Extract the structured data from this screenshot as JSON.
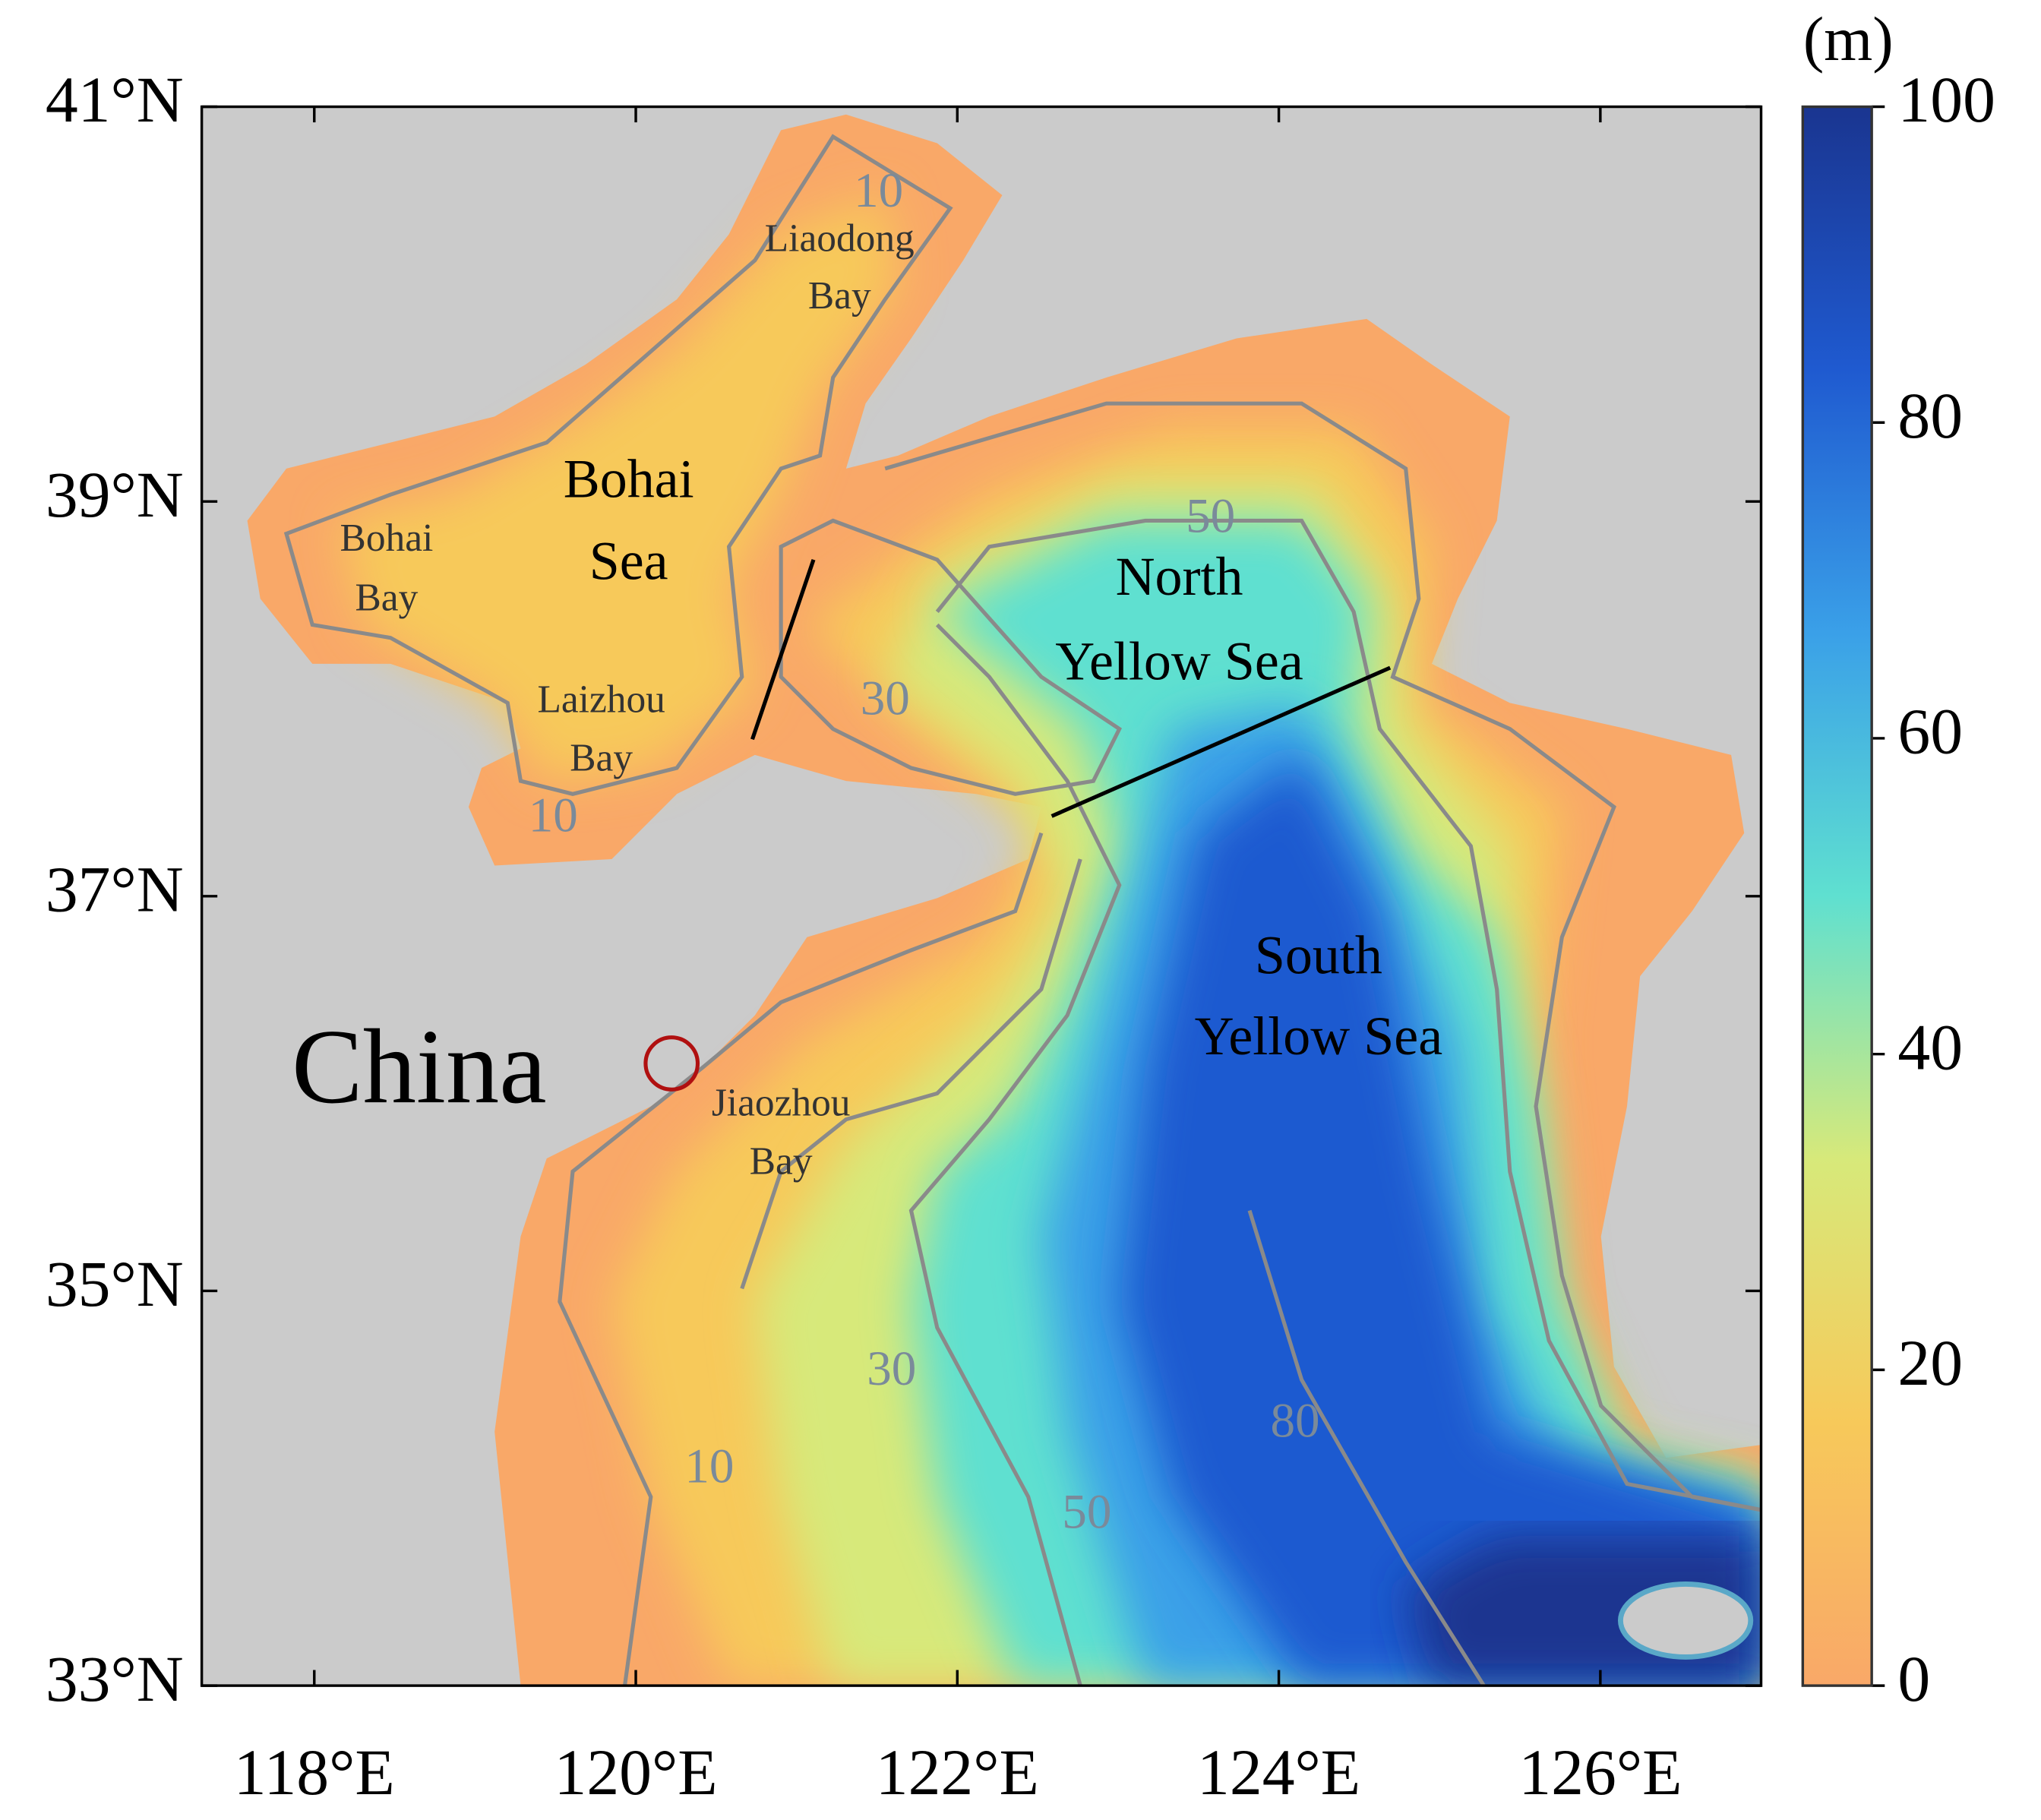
{
  "map": {
    "xlim": [
      117.3,
      127.0
    ],
    "ylim": [
      33,
      41
    ],
    "xticks": [
      {
        "value": 118,
        "label": "118°E"
      },
      {
        "value": 120,
        "label": "120°E"
      },
      {
        "value": 122,
        "label": "122°E"
      },
      {
        "value": 124,
        "label": "124°E"
      },
      {
        "value": 126,
        "label": "126°E"
      }
    ],
    "yticks": [
      {
        "value": 33,
        "label": "33°N"
      },
      {
        "value": 35,
        "label": "35°N"
      },
      {
        "value": 37,
        "label": "37°N"
      },
      {
        "value": 39,
        "label": "39°N"
      },
      {
        "value": 41,
        "label": "41°N"
      }
    ],
    "colorbar": {
      "unit": "(m)",
      "lim": [
        0,
        100
      ],
      "ticks": [
        0,
        20,
        40,
        60,
        80,
        100
      ],
      "colors": [
        "#f9a868",
        "#f7c95a",
        "#d7e97a",
        "#5fe0d0",
        "#3aa0e8",
        "#1f5ad0",
        "#1a3590"
      ]
    },
    "labels": [
      [
        "China"
      ],
      [
        "Bohai",
        "Sea"
      ],
      [
        "Bohai",
        "Bay"
      ],
      [
        "Liaodong",
        "Bay"
      ],
      [
        "Laizhou",
        "Bay"
      ],
      [
        "Jiaozhou",
        "Bay"
      ],
      [
        "North",
        "Yellow Sea"
      ],
      [
        "South",
        "Yellow Sea"
      ]
    ],
    "contour_labels": [
      "10",
      "10",
      "10",
      "30",
      "30",
      "50",
      "50",
      "80"
    ]
  }
}
